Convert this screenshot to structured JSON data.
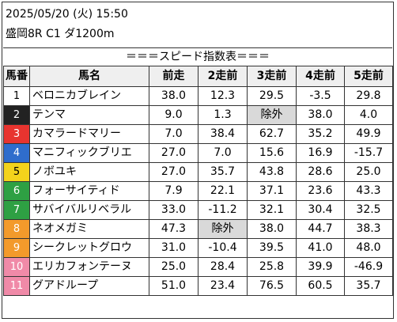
{
  "header": {
    "datetime": "2025/05/20 (火) 15:50",
    "race": "盛岡8R C1 ダ1200m",
    "caption": "＝＝＝スピード指数表＝＝＝"
  },
  "columns": [
    "馬番",
    "馬名",
    "前走",
    "2走前",
    "3走前",
    "4走前",
    "5走前"
  ],
  "rows": [
    {
      "no": "1",
      "name": "ベロニカブレイン",
      "v": [
        "38.0",
        "12.3",
        "29.5",
        "-3.5",
        "29.8"
      ],
      "bg": "#ffffff",
      "fg": "#000000"
    },
    {
      "no": "2",
      "name": "テンマ",
      "v": [
        "9.0",
        "1.3",
        "除外",
        "38.0",
        "4.0"
      ],
      "bg": "#222222",
      "fg": "#ffffff"
    },
    {
      "no": "3",
      "name": "カマラードマリー",
      "v": [
        "7.0",
        "38.4",
        "62.7",
        "35.2",
        "49.9"
      ],
      "bg": "#e8342f",
      "fg": "#ffffff"
    },
    {
      "no": "4",
      "name": "マニフィックブリエ",
      "v": [
        "27.0",
        "7.0",
        "15.6",
        "16.9",
        "-15.7"
      ],
      "bg": "#2f6dcc",
      "fg": "#ffffff"
    },
    {
      "no": "5",
      "name": "ノボユキ",
      "v": [
        "27.0",
        "35.7",
        "43.8",
        "28.6",
        "25.0"
      ],
      "bg": "#f3d31c",
      "fg": "#000000"
    },
    {
      "no": "6",
      "name": "フォーサイティド",
      "v": [
        "7.9",
        "22.1",
        "37.1",
        "23.6",
        "43.3"
      ],
      "bg": "#2ea043",
      "fg": "#ffffff"
    },
    {
      "no": "7",
      "name": "サバイバルリベラル",
      "v": [
        "33.0",
        "-11.2",
        "32.1",
        "30.4",
        "32.5"
      ],
      "bg": "#2ea043",
      "fg": "#ffffff"
    },
    {
      "no": "8",
      "name": "ネオメガミ",
      "v": [
        "47.3",
        "除外",
        "38.0",
        "44.7",
        "38.3"
      ],
      "bg": "#f39a2b",
      "fg": "#ffffff"
    },
    {
      "no": "9",
      "name": "シークレットグロウ",
      "v": [
        "31.0",
        "-10.4",
        "39.5",
        "41.0",
        "48.0"
      ],
      "bg": "#f39a2b",
      "fg": "#ffffff"
    },
    {
      "no": "10",
      "name": "エリカフォンテーヌ",
      "v": [
        "25.0",
        "28.4",
        "25.8",
        "39.9",
        "-46.9"
      ],
      "bg": "#f08aa8",
      "fg": "#ffffff"
    },
    {
      "no": "11",
      "name": "グアドループ",
      "v": [
        "51.0",
        "23.4",
        "76.5",
        "60.5",
        "35.7"
      ],
      "bg": "#f08aa8",
      "fg": "#ffffff"
    }
  ]
}
